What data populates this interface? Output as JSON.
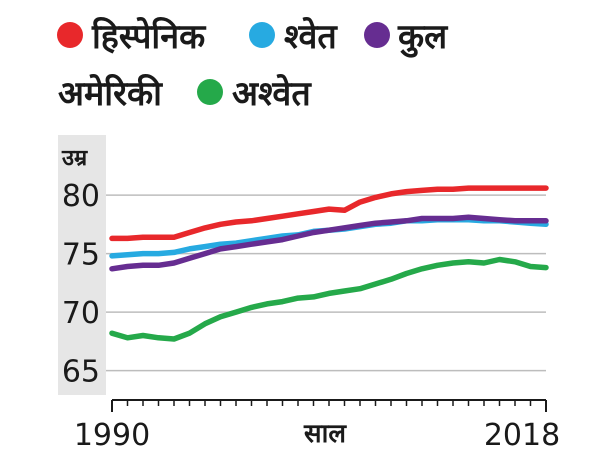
{
  "chart_data": {
    "type": "line",
    "ylabel": "उम्र",
    "xlabel": "साल",
    "ylim": [
      63,
      83
    ],
    "yticks": [
      65,
      70,
      75,
      80
    ],
    "xlim": [
      1990,
      2018
    ],
    "xtick_labels": [
      "1990",
      "2018"
    ],
    "grid": true,
    "legend_placement": "top",
    "x": [
      1990,
      1991,
      1992,
      1993,
      1994,
      1995,
      1996,
      1997,
      1998,
      1999,
      2000,
      2001,
      2002,
      2003,
      2004,
      2005,
      2006,
      2007,
      2008,
      2009,
      2010,
      2011,
      2012,
      2013,
      2014,
      2015,
      2016,
      2017,
      2018
    ],
    "series": [
      {
        "name": "हिस्पेनिक",
        "color": "#e8282b",
        "values": [
          76.3,
          76.3,
          76.4,
          76.4,
          76.4,
          76.8,
          77.2,
          77.5,
          77.7,
          77.8,
          78.0,
          78.2,
          78.4,
          78.6,
          78.8,
          78.7,
          79.4,
          79.8,
          80.1,
          80.3,
          80.4,
          80.5,
          80.5,
          80.6,
          80.6,
          80.6,
          80.6,
          80.6,
          80.6
        ]
      },
      {
        "name": "श्वेत",
        "color": "#27aae1",
        "values": [
          74.8,
          74.9,
          75.0,
          75.0,
          75.1,
          75.4,
          75.6,
          75.8,
          75.9,
          76.1,
          76.3,
          76.5,
          76.6,
          76.9,
          77.0,
          77.1,
          77.3,
          77.5,
          77.6,
          77.8,
          77.8,
          77.9,
          77.9,
          77.9,
          77.8,
          77.8,
          77.7,
          77.6,
          77.5
        ]
      },
      {
        "name": "कुल",
        "color": "#662d91",
        "values": [
          73.7,
          73.9,
          74.0,
          74.0,
          74.2,
          74.6,
          75.0,
          75.4,
          75.6,
          75.8,
          76.0,
          76.2,
          76.5,
          76.8,
          77.0,
          77.2,
          77.4,
          77.6,
          77.7,
          77.8,
          78.0,
          78.0,
          78.0,
          78.1,
          78.0,
          77.9,
          77.8,
          77.8,
          77.8
        ]
      },
      {
        "name": "अश्वेत",
        "color": "#25a94a",
        "values": [
          68.2,
          67.8,
          68.0,
          67.8,
          67.7,
          68.2,
          69.0,
          69.6,
          70.0,
          70.4,
          70.7,
          70.9,
          71.2,
          71.3,
          71.6,
          71.8,
          72.0,
          72.4,
          72.8,
          73.3,
          73.7,
          74.0,
          74.2,
          74.3,
          74.2,
          74.5,
          74.3,
          73.9,
          73.8
        ]
      }
    ]
  }
}
